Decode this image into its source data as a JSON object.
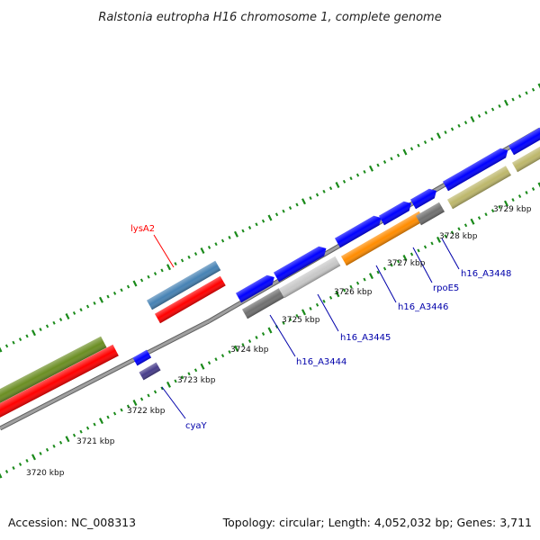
{
  "title": "Ralstonia eutropha H16 chromosome 1, complete genome",
  "footer": {
    "accession": "Accession: NC_008313",
    "topology": "Topology: circular; Length: 4,052,032 bp; Genes: 3,711"
  },
  "kbp_labels": [
    "3720 kbp",
    "3721 kbp",
    "3722 kbp",
    "3723 kbp",
    "3724 kbp",
    "3725 kbp",
    "3726 kbp",
    "3727 kbp",
    "3728 kbp",
    "3729 kbp"
  ],
  "gene_labels": {
    "lysA2": "lysA2",
    "cyaY": "cyaY",
    "h16_A3444": "h16_A3444",
    "h16_A3445": "h16_A3445",
    "h16_A3446": "h16_A3446",
    "rpoE5": "rpoE5",
    "h16_A3448": "h16_A3448"
  },
  "colors": {
    "backbone": "#909090",
    "tick": "#1a8a1a",
    "red": "#ff0000",
    "blue": "#0000ff",
    "olive": "#6b8e23",
    "steel_blue": "#4682b4",
    "gray": "#808080",
    "light_gray": "#c8c8c8",
    "orange": "#ff8c00",
    "khaki": "#bdb76b",
    "dark_slate_blue": "#483d8b",
    "blue_label": "#0000aa",
    "red_label": "#ff0000"
  }
}
